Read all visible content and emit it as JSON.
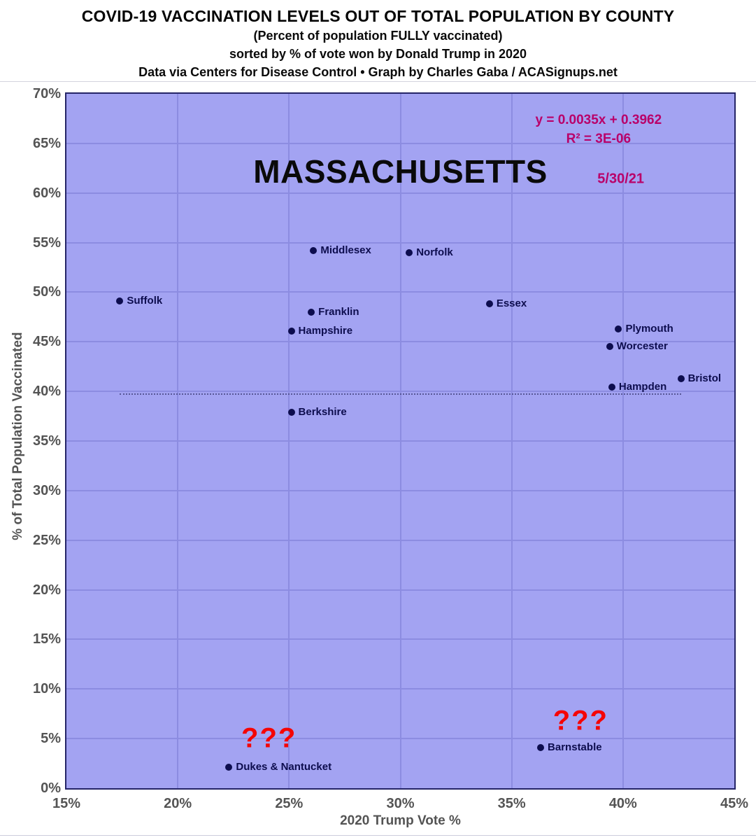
{
  "header": {
    "title": "COVID-19 VACCINATION LEVELS OUT OF TOTAL POPULATION BY COUNTY",
    "subtitle1": "(Percent of population FULLY vaccinated)",
    "subtitle2": "sorted by % of vote won by Donald Trump in 2020",
    "credit": "Data via Centers for Disease Control • Graph by Charles Gaba / ACASignups.net"
  },
  "chart_data": {
    "type": "scatter",
    "title": "MASSACHUSETTS",
    "xlabel": "2020 Trump Vote %",
    "ylabel": "% of Total Population Vaccinated",
    "xlim": [
      15,
      45
    ],
    "ylim": [
      0,
      70
    ],
    "grid": true,
    "x_ticks": [
      "15%",
      "20%",
      "25%",
      "30%",
      "35%",
      "40%",
      "45%"
    ],
    "y_ticks": [
      "0%",
      "5%",
      "10%",
      "15%",
      "20%",
      "25%",
      "30%",
      "35%",
      "40%",
      "45%",
      "50%",
      "55%",
      "60%",
      "65%",
      "70%"
    ],
    "points": [
      {
        "county": "Suffolk",
        "trump_vote_pct": 17.4,
        "vaccinated_pct": 49.1
      },
      {
        "county": "Middlesex",
        "trump_vote_pct": 26.1,
        "vaccinated_pct": 54.2
      },
      {
        "county": "Norfolk",
        "trump_vote_pct": 30.4,
        "vaccinated_pct": 54.0
      },
      {
        "county": "Essex",
        "trump_vote_pct": 34.0,
        "vaccinated_pct": 48.8
      },
      {
        "county": "Franklin",
        "trump_vote_pct": 26.0,
        "vaccinated_pct": 48.0
      },
      {
        "county": "Hampshire",
        "trump_vote_pct": 25.1,
        "vaccinated_pct": 46.1
      },
      {
        "county": "Plymouth",
        "trump_vote_pct": 39.8,
        "vaccinated_pct": 46.3
      },
      {
        "county": "Worcester",
        "trump_vote_pct": 39.4,
        "vaccinated_pct": 44.5
      },
      {
        "county": "Bristol",
        "trump_vote_pct": 42.6,
        "vaccinated_pct": 41.3
      },
      {
        "county": "Hampden",
        "trump_vote_pct": 39.5,
        "vaccinated_pct": 40.4
      },
      {
        "county": "Berkshire",
        "trump_vote_pct": 25.1,
        "vaccinated_pct": 37.9
      },
      {
        "county": "Barnstable",
        "trump_vote_pct": 36.3,
        "vaccinated_pct": 4.1
      },
      {
        "county": "Dukes & Nantucket",
        "trump_vote_pct": 22.3,
        "vaccinated_pct": 2.1
      }
    ],
    "trendline": {
      "equation": "y = 0.0035x + 0.3962",
      "r_squared": "R² = 3E-06",
      "style": "dotted",
      "y_value_pct": 39.75,
      "x_start": 17.4,
      "x_end": 42.6
    },
    "annotations": [
      {
        "role": "state-label",
        "text": "MASSACHUSETTS",
        "x": 30.0,
        "y": 62.2
      },
      {
        "role": "equation",
        "text": "y = 0.0035x + 0.3962",
        "x": 38.9,
        "y": 67.3
      },
      {
        "role": "equation",
        "text": "R² = 3E-06",
        "x": 38.9,
        "y": 65.4
      },
      {
        "role": "date-label",
        "text": "5/30/21",
        "x": 39.9,
        "y": 61.4
      },
      {
        "role": "question-marks",
        "text": "???",
        "x": 24.1,
        "y": 5.0
      },
      {
        "role": "question-marks",
        "text": "???",
        "x": 38.1,
        "y": 6.8
      }
    ],
    "legend": "none"
  },
  "colors": {
    "plot_background": "#a3a3f2",
    "gridline": "#8c8ce1",
    "plot_border": "#252567",
    "point": "#0d0d4e",
    "annotation_magenta": "#b90069",
    "annotation_red": "#f50505",
    "axis_text": "#545454",
    "title_text": "#050505"
  }
}
